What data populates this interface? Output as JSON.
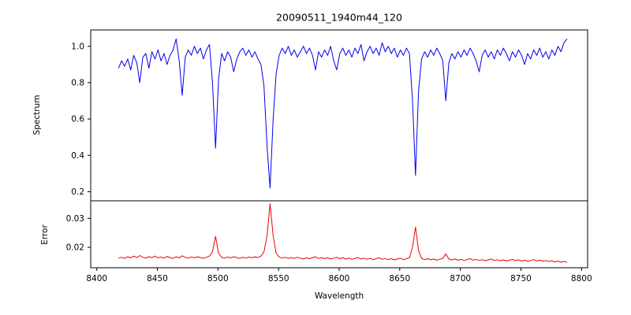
{
  "chart_data": {
    "type": "line",
    "title": "20090511_1940m44_120",
    "xlabel": "Wavelength",
    "grid": false,
    "legend": "none",
    "xlim": [
      8395,
      8805
    ],
    "xticks": [
      8400,
      8450,
      8500,
      8550,
      8600,
      8650,
      8700,
      8750,
      8800
    ],
    "xtick_labels": [
      "8400",
      "8450",
      "8500",
      "8550",
      "8600",
      "8650",
      "8700",
      "8750",
      "8800"
    ],
    "subplots": [
      {
        "name": "spectrum",
        "ylabel": "Spectrum",
        "color": "#0000ee",
        "ylim": [
          0.15,
          1.09
        ],
        "yticks": [
          0.2,
          0.4,
          0.6,
          0.8,
          1.0
        ],
        "ytick_labels": [
          "0.2",
          "0.4",
          "0.6",
          "0.8",
          "1.0"
        ],
        "x0": 8418,
        "dx": 2.5,
        "absorption_lines": [
          {
            "center": 8498,
            "min_flux": 0.44
          },
          {
            "center": 8542,
            "min_flux": 0.22
          },
          {
            "center": 8662,
            "min_flux": 0.29
          },
          {
            "center": 8688,
            "min_flux": 0.7
          }
        ],
        "values": [
          0.88,
          0.92,
          0.89,
          0.93,
          0.87,
          0.95,
          0.91,
          0.8,
          0.94,
          0.96,
          0.88,
          0.97,
          0.93,
          0.98,
          0.92,
          0.96,
          0.9,
          0.95,
          0.98,
          1.04,
          0.92,
          0.73,
          0.94,
          0.98,
          0.95,
          1.0,
          0.96,
          0.99,
          0.93,
          0.98,
          1.01,
          0.8,
          0.44,
          0.82,
          0.96,
          0.92,
          0.97,
          0.94,
          0.86,
          0.93,
          0.97,
          0.99,
          0.95,
          0.98,
          0.94,
          0.97,
          0.93,
          0.9,
          0.78,
          0.45,
          0.22,
          0.6,
          0.85,
          0.95,
          0.99,
          0.96,
          1.0,
          0.95,
          0.98,
          0.94,
          0.97,
          1.0,
          0.96,
          0.99,
          0.95,
          0.87,
          0.97,
          0.94,
          0.98,
          0.95,
          1.0,
          0.92,
          0.87,
          0.96,
          0.99,
          0.95,
          0.98,
          0.94,
          0.99,
          0.96,
          1.01,
          0.92,
          0.97,
          1.0,
          0.96,
          0.99,
          0.95,
          1.02,
          0.97,
          1.0,
          0.96,
          0.99,
          0.94,
          0.98,
          0.95,
          0.99,
          0.96,
          0.7,
          0.29,
          0.75,
          0.93,
          0.97,
          0.94,
          0.98,
          0.95,
          0.99,
          0.96,
          0.92,
          0.7,
          0.91,
          0.96,
          0.93,
          0.97,
          0.94,
          0.98,
          0.95,
          0.99,
          0.96,
          0.92,
          0.86,
          0.95,
          0.98,
          0.94,
          0.97,
          0.93,
          0.98,
          0.95,
          0.99,
          0.96,
          0.92,
          0.97,
          0.94,
          0.98,
          0.95,
          0.9,
          0.96,
          0.93,
          0.98,
          0.95,
          0.99,
          0.94,
          0.97,
          0.93,
          0.98,
          0.95,
          1.0,
          0.97,
          1.02,
          1.04
        ]
      },
      {
        "name": "error",
        "ylabel": "Error",
        "color": "#ee0000",
        "ylim": [
          0.013,
          0.036
        ],
        "yticks": [
          0.02,
          0.03
        ],
        "ytick_labels": [
          "0.02",
          "0.03"
        ],
        "x0": 8418,
        "dx": 2.5,
        "error_peaks": [
          {
            "center": 8498,
            "max_error": 0.024
          },
          {
            "center": 8542,
            "max_error": 0.035
          },
          {
            "center": 8662,
            "max_error": 0.027
          },
          {
            "center": 8688,
            "max_error": 0.018
          }
        ],
        "values": [
          0.0163,
          0.0166,
          0.0162,
          0.0168,
          0.0164,
          0.017,
          0.0165,
          0.0172,
          0.0166,
          0.0163,
          0.0168,
          0.0165,
          0.017,
          0.0164,
          0.0167,
          0.0163,
          0.0169,
          0.0165,
          0.0162,
          0.0168,
          0.0164,
          0.0171,
          0.0166,
          0.0163,
          0.0167,
          0.0164,
          0.0168,
          0.0165,
          0.0162,
          0.0166,
          0.017,
          0.0185,
          0.0238,
          0.018,
          0.0166,
          0.0163,
          0.0167,
          0.0164,
          0.0168,
          0.0165,
          0.0162,
          0.0166,
          0.0163,
          0.0167,
          0.0164,
          0.0168,
          0.0165,
          0.017,
          0.0185,
          0.024,
          0.035,
          0.024,
          0.018,
          0.0167,
          0.0163,
          0.0166,
          0.0162,
          0.0165,
          0.0162,
          0.0166,
          0.0163,
          0.016,
          0.0164,
          0.0161,
          0.0165,
          0.0168,
          0.0162,
          0.0165,
          0.0161,
          0.0164,
          0.016,
          0.0163,
          0.0166,
          0.0161,
          0.0164,
          0.016,
          0.0163,
          0.0159,
          0.0162,
          0.0165,
          0.016,
          0.0163,
          0.0159,
          0.0162,
          0.0158,
          0.0161,
          0.0164,
          0.0159,
          0.0162,
          0.0158,
          0.0161,
          0.0157,
          0.016,
          0.0163,
          0.0158,
          0.0161,
          0.0165,
          0.02,
          0.027,
          0.019,
          0.0162,
          0.0158,
          0.0161,
          0.0157,
          0.016,
          0.0156,
          0.0159,
          0.0162,
          0.0178,
          0.016,
          0.0157,
          0.016,
          0.0156,
          0.0159,
          0.0155,
          0.0158,
          0.0161,
          0.0156,
          0.0159,
          0.0155,
          0.0158,
          0.0154,
          0.0157,
          0.016,
          0.0155,
          0.0158,
          0.0154,
          0.0157,
          0.0153,
          0.0156,
          0.0159,
          0.0154,
          0.0157,
          0.0153,
          0.0156,
          0.0152,
          0.0155,
          0.0158,
          0.0153,
          0.0156,
          0.0152,
          0.0155,
          0.0151,
          0.0154,
          0.015,
          0.0153,
          0.0149,
          0.0152,
          0.0148
        ]
      }
    ]
  }
}
